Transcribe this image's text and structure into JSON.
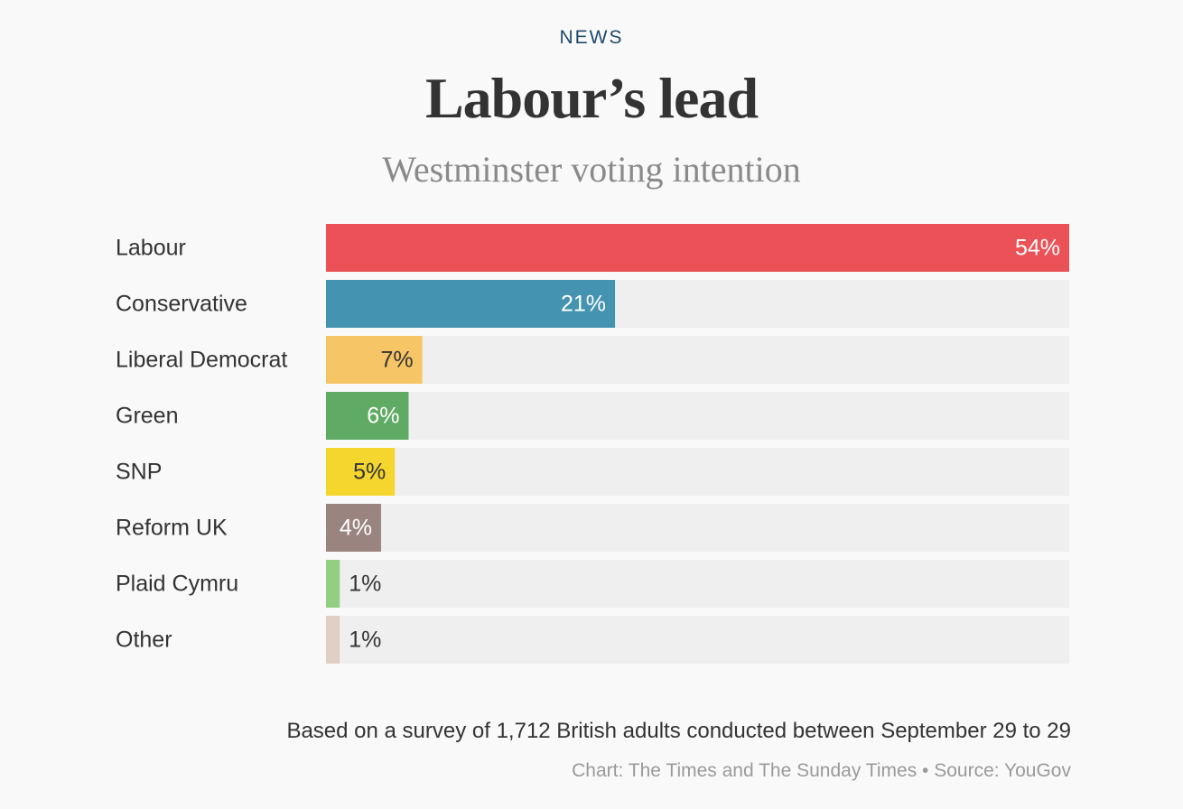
{
  "header": {
    "kicker": "NEWS",
    "title": "Labour’s lead",
    "subtitle": "Westminster voting intention"
  },
  "chart_data": {
    "type": "bar",
    "orientation": "horizontal",
    "title": "Labour’s lead",
    "subtitle": "Westminster voting intention",
    "categories": [
      "Labour",
      "Conservative",
      "Liberal Democrat",
      "Green",
      "SNP",
      "Reform UK",
      "Plaid Cymru",
      "Other"
    ],
    "values": [
      54,
      21,
      7,
      6,
      5,
      4,
      1,
      1
    ],
    "value_labels": [
      "54%",
      "21%",
      "7%",
      "6%",
      "5%",
      "4%",
      "1%",
      "1%"
    ],
    "colors": [
      "#eb5257",
      "#4393b1",
      "#f6c566",
      "#5fab63",
      "#f4d62f",
      "#9a8480",
      "#93cf82",
      "#e0cfc4"
    ],
    "value_label_colors": [
      "#ffffff",
      "#ffffff",
      "#333333",
      "#ffffff",
      "#333333",
      "#ffffff",
      "#333333",
      "#333333"
    ],
    "track_color": "#efefef",
    "xlim": [
      0,
      54
    ],
    "grid": false,
    "legend": "none"
  },
  "footer": {
    "note": "Based on a survey of 1,712 British adults conducted between September 29 to 29",
    "credit": "Chart: The Times and The Sunday Times • Source: YouGov"
  }
}
